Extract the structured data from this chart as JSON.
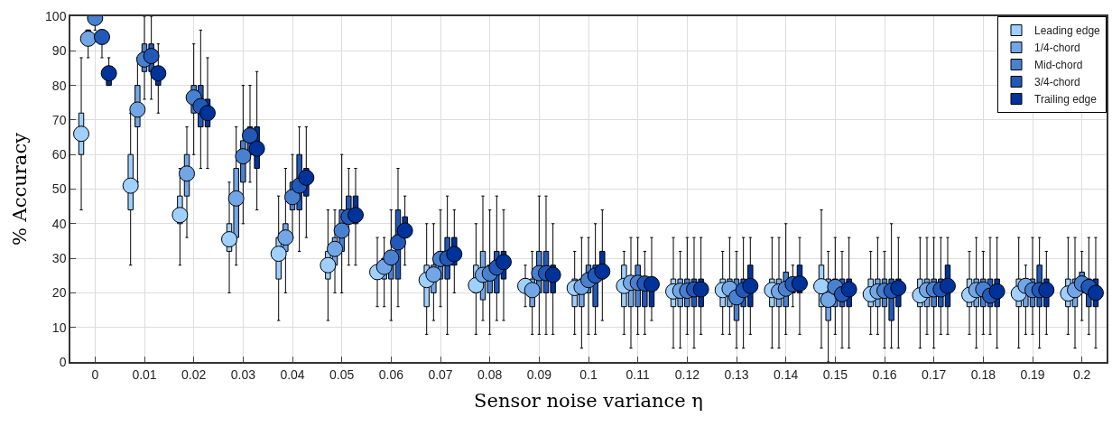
{
  "chart_data": {
    "type": "box",
    "xlabel": "Sensor noise variance η",
    "ylabel": "% Accuracy",
    "categories": [
      "0",
      "0.01",
      "0.02",
      "0.03",
      "0.04",
      "0.05",
      "0.06",
      "0.07",
      "0.08",
      "0.09",
      "0.1",
      "0.11",
      "0.12",
      "0.13",
      "0.14",
      "0.15",
      "0.16",
      "0.17",
      "0.18",
      "0.19",
      "0.2"
    ],
    "ylim": [
      0,
      100
    ],
    "yticks": [
      0,
      10,
      20,
      30,
      40,
      50,
      60,
      70,
      80,
      90,
      100
    ],
    "grid": true,
    "legend": "top right",
    "marker": "circle",
    "series": [
      {
        "name": "Leading edge",
        "color": "#9fd0ff",
        "boxes": [
          {
            "low": 44,
            "q1": 60,
            "median": 66,
            "mean": 66,
            "q3": 72,
            "high": 88
          },
          {
            "low": 28,
            "q1": 44,
            "median": 51,
            "mean": 51,
            "q3": 60,
            "high": 72
          },
          {
            "low": 28,
            "q1": 40,
            "median": 42.5,
            "mean": 42.5,
            "q3": 48,
            "high": 56
          },
          {
            "low": 20,
            "q1": 32,
            "median": 35.5,
            "mean": 35.5,
            "q3": 40,
            "high": 52
          },
          {
            "low": 12,
            "q1": 24,
            "median": 31.3,
            "mean": 31.3,
            "q3": 36,
            "high": 48
          },
          {
            "low": 12,
            "q1": 24,
            "median": 28,
            "mean": 28,
            "q3": 32,
            "high": 44
          },
          {
            "low": 16,
            "q1": 24,
            "median": 26,
            "mean": 26,
            "q3": 28,
            "high": 36
          },
          {
            "low": 8,
            "q1": 16,
            "median": 23.7,
            "mean": 23.7,
            "q3": 28,
            "high": 40
          },
          {
            "low": 8,
            "q1": 20,
            "median": 22.2,
            "mean": 22.2,
            "q3": 28,
            "high": 40
          },
          {
            "low": 16,
            "q1": 20,
            "median": 22,
            "mean": 22,
            "q3": 24,
            "high": 28
          },
          {
            "low": 8,
            "q1": 16,
            "median": 21.4,
            "mean": 21.4,
            "q3": 24,
            "high": 32
          },
          {
            "low": 8,
            "q1": 16,
            "median": 22,
            "mean": 22,
            "q3": 28,
            "high": 32
          },
          {
            "low": 4,
            "q1": 16,
            "median": 20.4,
            "mean": 20.4,
            "q3": 24,
            "high": 36
          },
          {
            "low": 8,
            "q1": 16,
            "median": 20.8,
            "mean": 20.8,
            "q3": 24,
            "high": 32
          },
          {
            "low": 4,
            "q1": 16,
            "median": 20.8,
            "mean": 20.8,
            "q3": 24,
            "high": 36
          },
          {
            "low": 4,
            "q1": 16,
            "median": 21.9,
            "mean": 21.9,
            "q3": 28,
            "high": 44
          },
          {
            "low": 8,
            "q1": 16,
            "median": 19.6,
            "mean": 19.6,
            "q3": 24,
            "high": 32
          },
          {
            "low": 4,
            "q1": 16,
            "median": 19.3,
            "mean": 19.3,
            "q3": 24,
            "high": 36
          },
          {
            "low": 8,
            "q1": 16,
            "median": 19.4,
            "mean": 19.4,
            "q3": 24,
            "high": 32
          },
          {
            "low": 4,
            "q1": 16,
            "median": 19.8,
            "mean": 19.8,
            "q3": 24,
            "high": 36
          },
          {
            "low": 8,
            "q1": 16,
            "median": 19.8,
            "mean": 19.8,
            "q3": 24,
            "high": 36
          }
        ]
      },
      {
        "name": "1/4-chord",
        "color": "#72a6e6",
        "boxes": [
          {
            "low": 88,
            "q1": 92,
            "median": 93.5,
            "mean": 93.5,
            "q3": 96,
            "high": 96
          },
          {
            "low": 52,
            "q1": 68,
            "median": 73,
            "mean": 73,
            "q3": 80,
            "high": 88
          },
          {
            "low": 36,
            "q1": 48,
            "median": 54.5,
            "mean": 54.5,
            "q3": 60,
            "high": 68
          },
          {
            "low": 28,
            "q1": 36,
            "median": 47.3,
            "mean": 47.3,
            "q3": 56,
            "high": 68
          },
          {
            "low": 20,
            "q1": 32,
            "median": 36,
            "mean": 36,
            "q3": 40,
            "high": 56
          },
          {
            "low": 20,
            "q1": 28,
            "median": 32.7,
            "mean": 32.7,
            "q3": 36,
            "high": 44
          },
          {
            "low": 16,
            "q1": 24,
            "median": 27.5,
            "mean": 27.5,
            "q3": 30,
            "high": 36
          },
          {
            "low": 12,
            "q1": 20,
            "median": 25.3,
            "mean": 25.3,
            "q3": 28,
            "high": 40
          },
          {
            "low": 12,
            "q1": 18,
            "median": 25.2,
            "mean": 25.2,
            "q3": 32,
            "high": 48
          },
          {
            "low": 8,
            "q1": 16,
            "median": 20.8,
            "mean": 20.8,
            "q3": 24,
            "high": 32
          },
          {
            "low": 4,
            "q1": 16,
            "median": 21.7,
            "mean": 21.7,
            "q3": 24,
            "high": 36
          },
          {
            "low": 4,
            "q1": 16,
            "median": 22.9,
            "mean": 22.9,
            "q3": 24,
            "high": 36
          },
          {
            "low": 4,
            "q1": 16,
            "median": 20.6,
            "mean": 20.6,
            "q3": 24,
            "high": 32
          },
          {
            "low": 8,
            "q1": 16,
            "median": 21.2,
            "mean": 21.2,
            "q3": 24,
            "high": 36
          },
          {
            "low": 4,
            "q1": 16,
            "median": 20.4,
            "mean": 20.4,
            "q3": 24,
            "high": 36
          },
          {
            "low": 0,
            "q1": 12,
            "median": 18,
            "mean": 18,
            "q3": 24,
            "high": 32
          },
          {
            "low": 8,
            "q1": 16,
            "median": 20.4,
            "mean": 20.4,
            "q3": 24,
            "high": 36
          },
          {
            "low": 8,
            "q1": 16,
            "median": 20.8,
            "mean": 20.8,
            "q3": 24,
            "high": 36
          },
          {
            "low": 4,
            "q1": 16,
            "median": 20.8,
            "mean": 20.8,
            "q3": 24,
            "high": 36
          },
          {
            "low": 8,
            "q1": 16,
            "median": 22,
            "mean": 22,
            "q3": 24,
            "high": 28
          },
          {
            "low": 4,
            "q1": 16,
            "median": 20.8,
            "mean": 20.8,
            "q3": 24,
            "high": 36
          }
        ]
      },
      {
        "name": "Mid-chord",
        "color": "#4a80d0",
        "boxes": [
          {
            "low": 96,
            "q1": 98,
            "median": 99.5,
            "mean": 99.5,
            "q3": 100,
            "high": 100
          },
          {
            "low": 76,
            "q1": 84,
            "median": 87.5,
            "mean": 87.5,
            "q3": 92,
            "high": 100
          },
          {
            "low": 60,
            "q1": 72,
            "median": 76.5,
            "mean": 76.5,
            "q3": 80,
            "high": 92
          },
          {
            "low": 40,
            "q1": 52,
            "median": 59.5,
            "mean": 59.5,
            "q3": 64,
            "high": 80
          },
          {
            "low": 36,
            "q1": 44,
            "median": 47.7,
            "mean": 47.7,
            "q3": 52,
            "high": 60
          },
          {
            "low": 20,
            "q1": 32,
            "median": 38,
            "mean": 38,
            "q3": 44,
            "high": 60
          },
          {
            "low": 12,
            "q1": 24,
            "median": 30.2,
            "mean": 30.2,
            "q3": 32,
            "high": 44
          },
          {
            "low": 16,
            "q1": 24,
            "median": 29.8,
            "mean": 29.8,
            "q3": 32,
            "high": 44
          },
          {
            "low": 8,
            "q1": 20,
            "median": 25.6,
            "mean": 25.6,
            "q3": 28,
            "high": 44
          },
          {
            "low": 8,
            "q1": 20,
            "median": 25.7,
            "mean": 25.7,
            "q3": 32,
            "high": 48
          },
          {
            "low": 8,
            "q1": 20,
            "median": 23.7,
            "mean": 23.7,
            "q3": 28,
            "high": 36
          },
          {
            "low": 8,
            "q1": 16,
            "median": 22.9,
            "mean": 22.9,
            "q3": 28,
            "high": 36
          },
          {
            "low": 8,
            "q1": 16,
            "median": 20.6,
            "mean": 20.6,
            "q3": 24,
            "high": 36
          },
          {
            "low": 4,
            "q1": 12,
            "median": 18.7,
            "mean": 18.7,
            "q3": 24,
            "high": 32
          },
          {
            "low": 8,
            "q1": 16,
            "median": 21.2,
            "mean": 21.2,
            "q3": 26,
            "high": 40
          },
          {
            "low": 8,
            "q1": 16,
            "median": 21.7,
            "mean": 21.7,
            "q3": 24,
            "high": 36
          },
          {
            "low": 4,
            "q1": 16,
            "median": 20.6,
            "mean": 20.6,
            "q3": 24,
            "high": 32
          },
          {
            "low": 4,
            "q1": 16,
            "median": 21,
            "mean": 21,
            "q3": 24,
            "high": 36
          },
          {
            "low": 8,
            "q1": 16,
            "median": 21,
            "mean": 21,
            "q3": 24,
            "high": 32
          },
          {
            "low": 8,
            "q1": 16,
            "median": 20.8,
            "mean": 20.8,
            "q3": 24,
            "high": 36
          },
          {
            "low": 12,
            "q1": 20,
            "median": 22.7,
            "mean": 22.7,
            "q3": 26,
            "high": 32
          }
        ]
      },
      {
        "name": "3/4-chord",
        "color": "#2258b8",
        "boxes": [
          {
            "low": 88,
            "q1": 92,
            "median": 94,
            "mean": 94,
            "q3": 96,
            "high": 96
          },
          {
            "low": 76,
            "q1": 84,
            "median": 88.5,
            "mean": 88.5,
            "q3": 92,
            "high": 100
          },
          {
            "low": 56,
            "q1": 68,
            "median": 74,
            "mean": 74,
            "q3": 80,
            "high": 96
          },
          {
            "low": 52,
            "q1": 60,
            "median": 65.5,
            "mean": 65.5,
            "q3": 68,
            "high": 80
          },
          {
            "low": 32,
            "q1": 44,
            "median": 51,
            "mean": 51,
            "q3": 60,
            "high": 68
          },
          {
            "low": 28,
            "q1": 40,
            "median": 42,
            "mean": 42,
            "q3": 48,
            "high": 56
          },
          {
            "low": 16,
            "q1": 24,
            "median": 34.6,
            "mean": 34.6,
            "q3": 44,
            "high": 56
          },
          {
            "low": 8,
            "q1": 24,
            "median": 30,
            "mean": 30,
            "q3": 36,
            "high": 48
          },
          {
            "low": 12,
            "q1": 20,
            "median": 27.3,
            "mean": 27.3,
            "q3": 32,
            "high": 48
          },
          {
            "low": 8,
            "q1": 20,
            "median": 25.7,
            "mean": 25.7,
            "q3": 32,
            "high": 48
          },
          {
            "low": 8,
            "q1": 16,
            "median": 25,
            "mean": 25,
            "q3": 28,
            "high": 40
          },
          {
            "low": 8,
            "q1": 16,
            "median": 22.7,
            "mean": 22.7,
            "q3": 24,
            "high": 32
          },
          {
            "low": 4,
            "q1": 16,
            "median": 21,
            "mean": 21,
            "q3": 24,
            "high": 36
          },
          {
            "low": 4,
            "q1": 16,
            "median": 20.8,
            "mean": 20.8,
            "q3": 24,
            "high": 36
          },
          {
            "low": 16,
            "q1": 20,
            "median": 22.5,
            "mean": 22.5,
            "q3": 24,
            "high": 28
          },
          {
            "low": 4,
            "q1": 16,
            "median": 19.6,
            "mean": 19.6,
            "q3": 24,
            "high": 32
          },
          {
            "low": 4,
            "q1": 12,
            "median": 20.6,
            "mean": 20.6,
            "q3": 24,
            "high": 40
          },
          {
            "low": 8,
            "q1": 16,
            "median": 21,
            "mean": 21,
            "q3": 24,
            "high": 36
          },
          {
            "low": 8,
            "q1": 16,
            "median": 19.2,
            "mean": 19.2,
            "q3": 24,
            "high": 36
          },
          {
            "low": 4,
            "q1": 16,
            "median": 20.8,
            "mean": 20.8,
            "q3": 28,
            "high": 36
          },
          {
            "low": 8,
            "q1": 16,
            "median": 21.7,
            "mean": 21.7,
            "q3": 24,
            "high": 36
          }
        ]
      },
      {
        "name": "Trailing edge",
        "color": "#003399",
        "boxes": [
          {
            "low": 80,
            "q1": 80,
            "median": 83.5,
            "mean": 83.5,
            "q3": 84,
            "high": 88
          },
          {
            "low": 72,
            "q1": 80,
            "median": 83.5,
            "mean": 83.5,
            "q3": 84,
            "high": 92
          },
          {
            "low": 56,
            "q1": 68,
            "median": 72,
            "mean": 72,
            "q3": 76,
            "high": 88
          },
          {
            "low": 44,
            "q1": 56,
            "median": 61.7,
            "mean": 61.7,
            "q3": 68,
            "high": 84
          },
          {
            "low": 36,
            "q1": 48,
            "median": 53.3,
            "mean": 53.3,
            "q3": 56,
            "high": 68
          },
          {
            "low": 28,
            "q1": 40,
            "median": 42.5,
            "mean": 42.5,
            "q3": 48,
            "high": 56
          },
          {
            "low": 28,
            "q1": 36,
            "median": 38,
            "mean": 38,
            "q3": 42,
            "high": 48
          },
          {
            "low": 20,
            "q1": 28,
            "median": 31.2,
            "mean": 31.2,
            "q3": 36,
            "high": 44
          },
          {
            "low": 12,
            "q1": 24,
            "median": 28.9,
            "mean": 28.9,
            "q3": 32,
            "high": 44
          },
          {
            "low": 8,
            "q1": 20,
            "median": 25.2,
            "mean": 25.2,
            "q3": 28,
            "high": 40
          },
          {
            "low": 12,
            "q1": 24,
            "median": 26.2,
            "mean": 26.2,
            "q3": 32,
            "high": 44
          },
          {
            "low": 12,
            "q1": 16,
            "median": 22.5,
            "mean": 22.5,
            "q3": 24,
            "high": 36
          },
          {
            "low": 8,
            "q1": 16,
            "median": 21,
            "mean": 21,
            "q3": 24,
            "high": 36
          },
          {
            "low": 8,
            "q1": 16,
            "median": 22,
            "mean": 22,
            "q3": 28,
            "high": 36
          },
          {
            "low": 8,
            "q1": 20,
            "median": 22.7,
            "mean": 22.7,
            "q3": 28,
            "high": 36
          },
          {
            "low": 4,
            "q1": 16,
            "median": 21,
            "mean": 21,
            "q3": 24,
            "high": 36
          },
          {
            "low": 4,
            "q1": 16,
            "median": 21.4,
            "mean": 21.4,
            "q3": 24,
            "high": 36
          },
          {
            "low": 8,
            "q1": 16,
            "median": 22,
            "mean": 22,
            "q3": 28,
            "high": 36
          },
          {
            "low": 4,
            "q1": 16,
            "median": 20.4,
            "mean": 20.4,
            "q3": 24,
            "high": 36
          },
          {
            "low": 8,
            "q1": 16,
            "median": 20.8,
            "mean": 20.8,
            "q3": 24,
            "high": 32
          },
          {
            "low": 4,
            "q1": 16,
            "median": 20,
            "mean": 20,
            "q3": 24,
            "high": 36
          }
        ]
      }
    ]
  }
}
